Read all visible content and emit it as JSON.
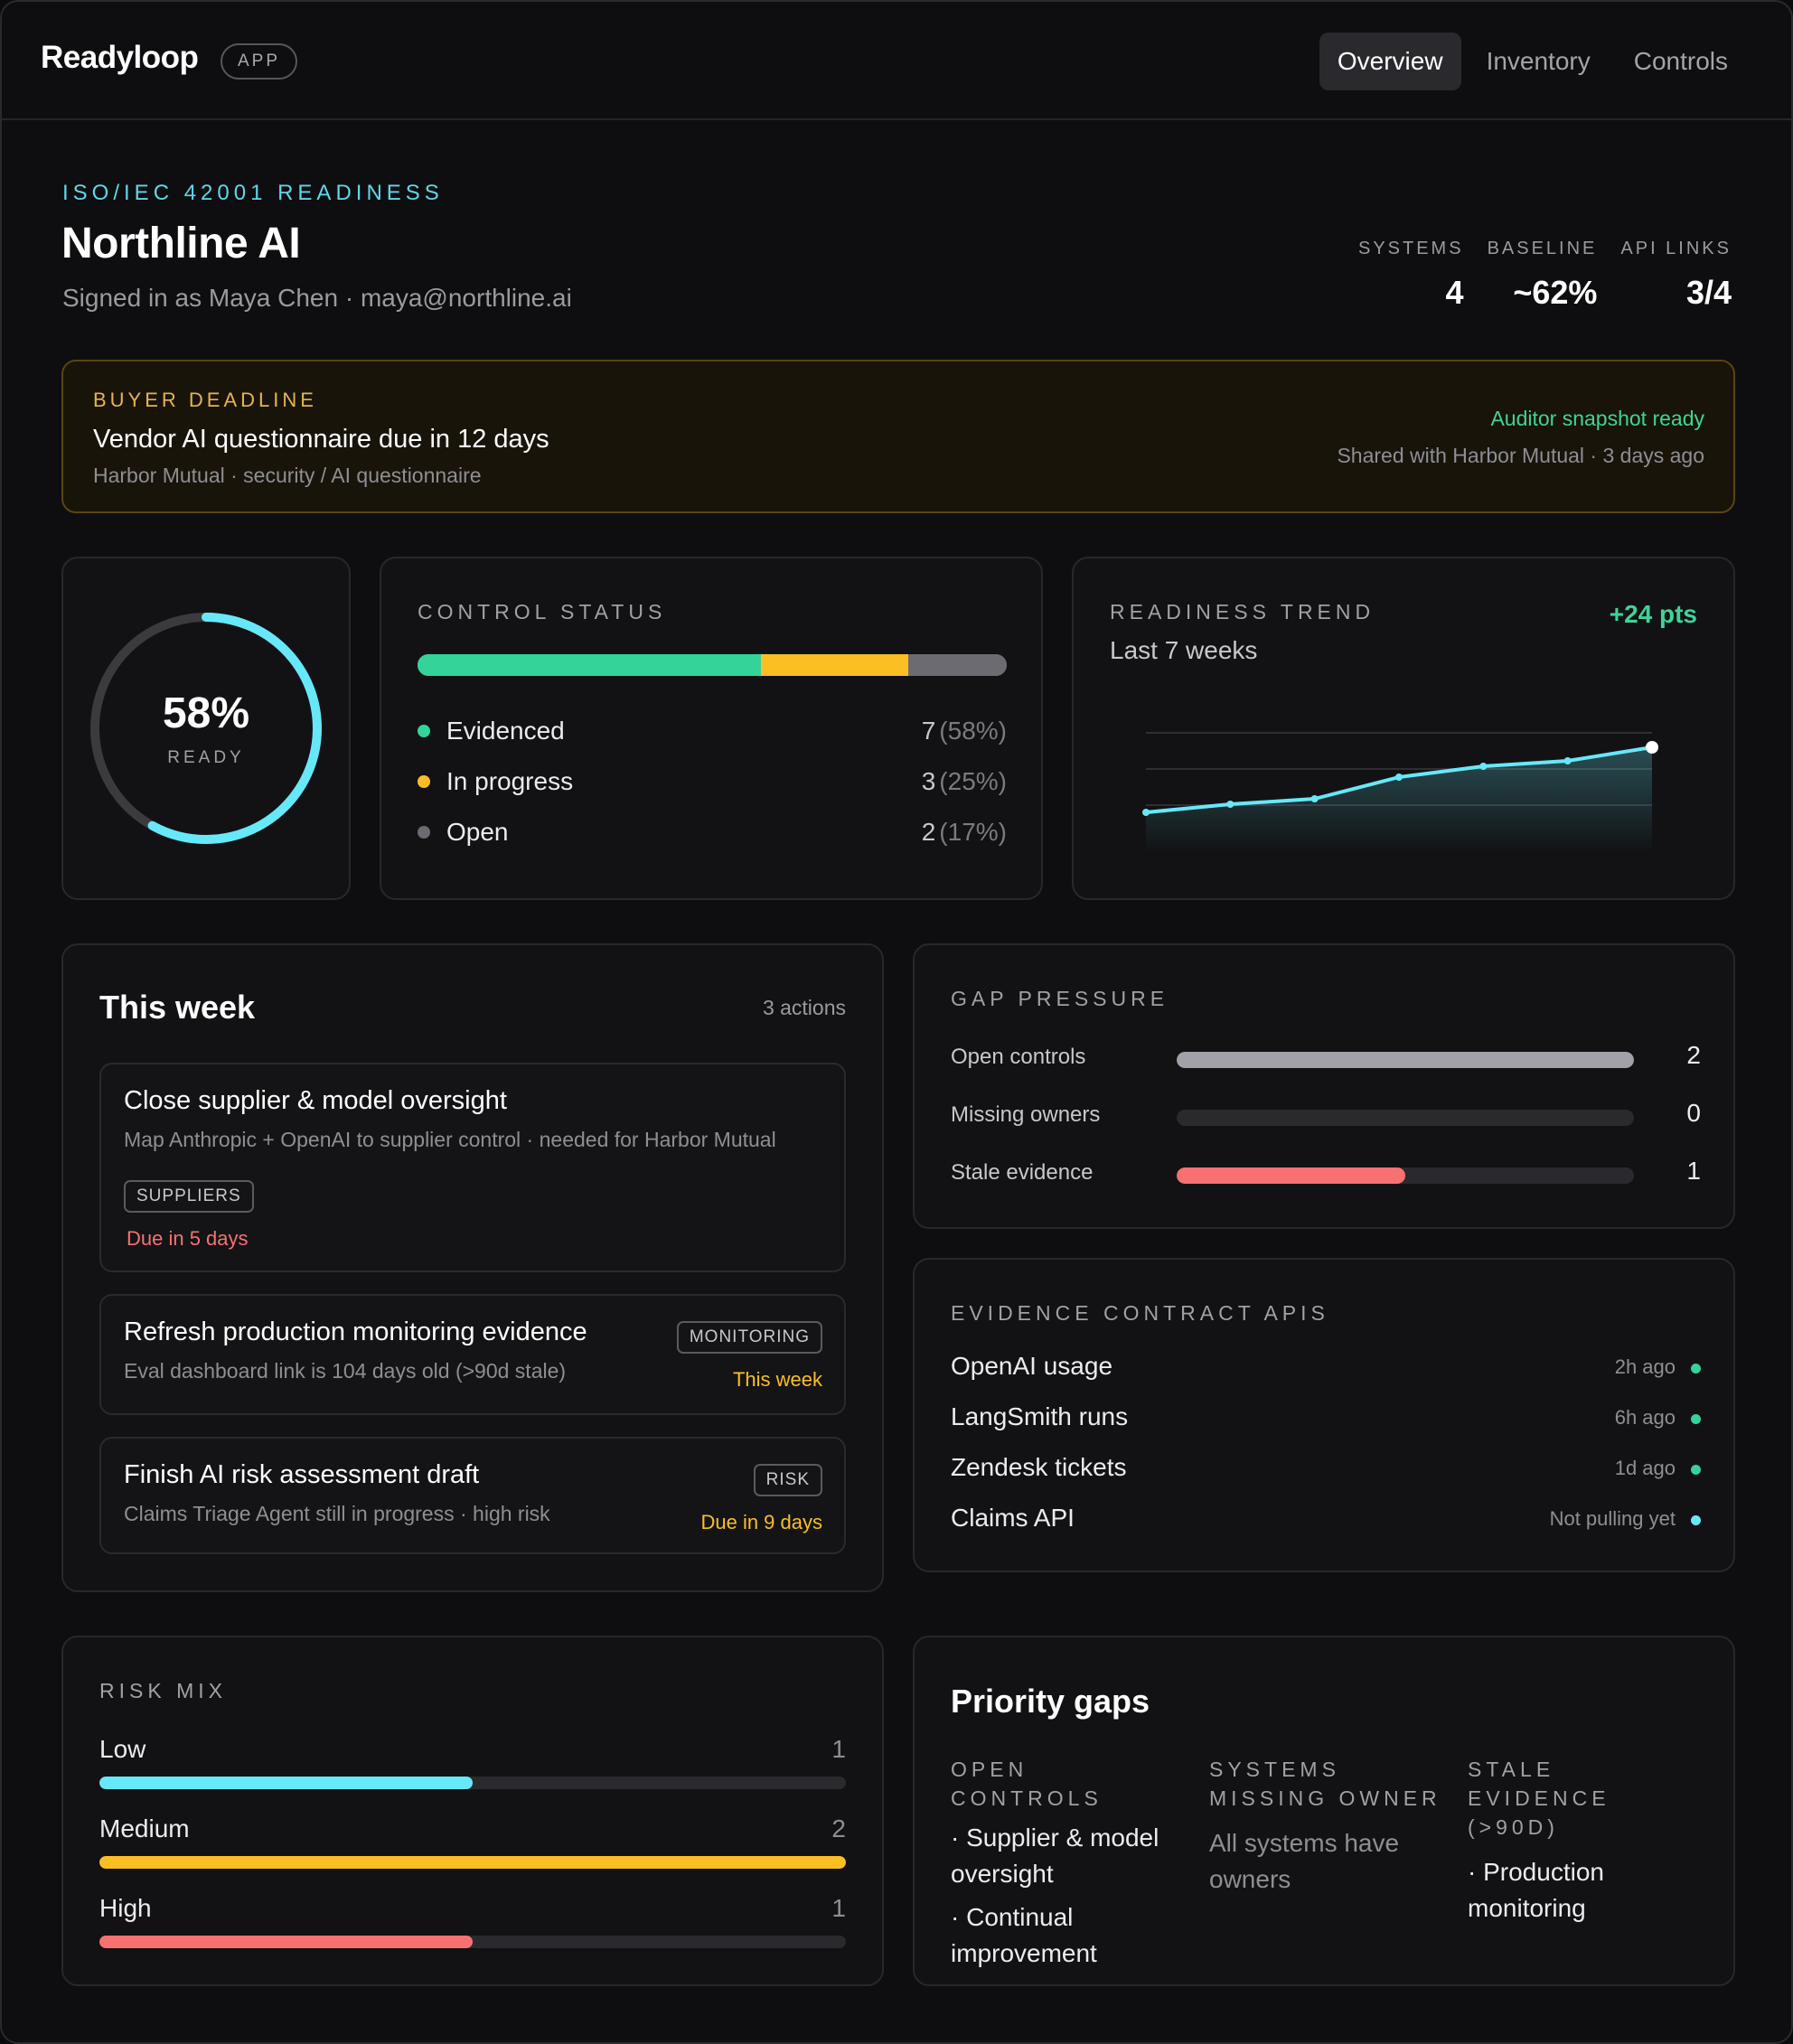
{
  "app": {
    "brand": "Readyloop",
    "badge": "APP",
    "nav": [
      "Overview",
      "Inventory",
      "Controls"
    ],
    "active_nav": "Overview"
  },
  "header": {
    "eyebrow": "ISO/IEC 42001 READINESS",
    "title": "Northline AI",
    "signed_in": "Signed in as Maya Chen · maya@northline.ai",
    "stats": [
      {
        "label": "SYSTEMS",
        "value": "4"
      },
      {
        "label": "BASELINE",
        "value": "~62%"
      },
      {
        "label": "API LINKS",
        "value": "3/4"
      }
    ]
  },
  "banner": {
    "eyebrow": "BUYER DEADLINE",
    "title": "Vendor AI questionnaire due in 12 days",
    "subtitle": "Harbor Mutual · security / AI questionnaire",
    "status": "Auditor snapshot ready",
    "status_sub": "Shared with Harbor Mutual · 3 days ago"
  },
  "readiness": {
    "value": "58%",
    "label": "READY",
    "fraction": 0.58
  },
  "control_status": {
    "title": "CONTROL STATUS",
    "items": [
      {
        "name": "Evidenced",
        "count": "7",
        "pct": "(58%)",
        "share": 58.3,
        "color": "#34d399"
      },
      {
        "name": "In progress",
        "count": "3",
        "pct": "(25%)",
        "share": 25,
        "color": "#fbbf24"
      },
      {
        "name": "Open",
        "count": "2",
        "pct": "(17%)",
        "share": 16.7,
        "color": "#6b6b71"
      }
    ]
  },
  "trend": {
    "title": "READINESS TREND",
    "subtitle": "Last 7 weeks",
    "delta": "+24 pts",
    "chart_data": {
      "type": "area",
      "x": [
        1,
        2,
        3,
        4,
        5,
        6,
        7
      ],
      "values": [
        38,
        41,
        43,
        51,
        55,
        57,
        62
      ],
      "ylim": [
        0,
        100
      ],
      "grid": true,
      "color": "#67e8f9"
    }
  },
  "this_week": {
    "title": "This week",
    "count": "3 actions",
    "tasks": [
      {
        "title": "Close supplier & model oversight",
        "desc": "Map Anthropic + OpenAI to supplier control · needed for Harbor Mutual",
        "tag": "SUPPLIERS",
        "due": "Due in 5 days",
        "due_color": "#f87171"
      },
      {
        "title": "Refresh production monitoring evidence",
        "desc": "Eval dashboard link is 104 days old (>90d stale)",
        "tag": "MONITORING",
        "due": "This week",
        "due_color": "#fbbf24"
      },
      {
        "title": "Finish AI risk assessment draft",
        "desc": "Claims Triage Agent still in progress · high risk",
        "tag": "RISK",
        "due": "Due in 9 days",
        "due_color": "#fbbf24"
      }
    ]
  },
  "gap_pressure": {
    "title": "GAP PRESSURE",
    "rows": [
      {
        "name": "Open controls",
        "value": "2",
        "fraction": 1.0,
        "color": "#a1a1a7"
      },
      {
        "name": "Missing owners",
        "value": "0",
        "fraction": 0,
        "color": "#a1a1a7"
      },
      {
        "name": "Stale evidence",
        "value": "1",
        "fraction": 0.5,
        "color": "#f87171"
      }
    ]
  },
  "evidence_apis": {
    "title": "EVIDENCE CONTRACT APIS",
    "rows": [
      {
        "name": "OpenAI usage",
        "time": "2h ago",
        "color": "#34d399"
      },
      {
        "name": "LangSmith runs",
        "time": "6h ago",
        "color": "#34d399"
      },
      {
        "name": "Zendesk tickets",
        "time": "1d ago",
        "color": "#34d399"
      },
      {
        "name": "Claims API",
        "time": "Not pulling yet",
        "color": "#67e8f9"
      }
    ]
  },
  "risk_mix": {
    "title": "RISK MIX",
    "rows": [
      {
        "name": "Low",
        "value": "1",
        "fraction": 0.5,
        "color": "#67e8f9"
      },
      {
        "name": "Medium",
        "value": "2",
        "fraction": 1.0,
        "color": "#fbbf24"
      },
      {
        "name": "High",
        "value": "1",
        "fraction": 0.5,
        "color": "#f87171"
      }
    ]
  },
  "priority_gaps": {
    "title": "Priority gaps",
    "columns": [
      {
        "heading": "OPEN CONTROLS",
        "items": [
          "· Supplier & model oversight",
          "· Continual improvement"
        ],
        "muted": ""
      },
      {
        "heading": "SYSTEMS MISSING OWNER",
        "items": [],
        "muted": "All systems have owners"
      },
      {
        "heading": "STALE EVIDENCE (>90D)",
        "items": [
          "· Production monitoring"
        ],
        "muted": ""
      }
    ]
  }
}
